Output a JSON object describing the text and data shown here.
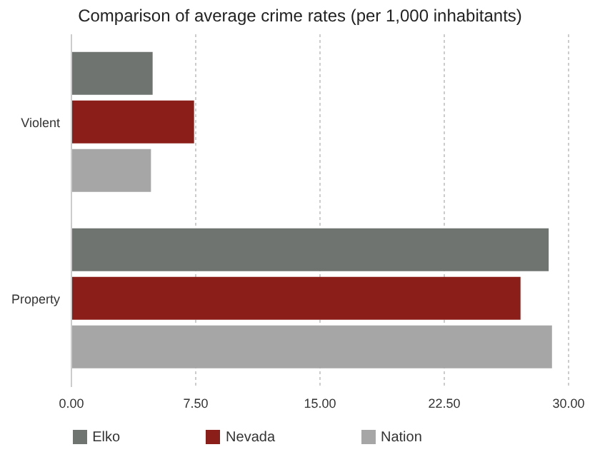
{
  "chart_data": {
    "type": "bar",
    "orientation": "horizontal",
    "title": "Comparison of average crime rates (per 1,000 inhabitants)",
    "categories": [
      "Violent",
      "Property"
    ],
    "series": [
      {
        "name": "Elko",
        "color": "#6f7471",
        "values": [
          4.9,
          28.8
        ]
      },
      {
        "name": "Nevada",
        "color": "#8b1e18",
        "values": [
          7.4,
          27.1
        ]
      },
      {
        "name": "Nation",
        "color": "#a6a6a6",
        "values": [
          4.8,
          29.0
        ]
      }
    ],
    "xlim": [
      0,
      30
    ],
    "xticks": [
      {
        "value": 0,
        "label": "0.00"
      },
      {
        "value": 7.5,
        "label": "7.50"
      },
      {
        "value": 15,
        "label": "15.00"
      },
      {
        "value": 22.5,
        "label": "22.50"
      },
      {
        "value": 30,
        "label": "30.00"
      }
    ],
    "grid": "x",
    "legend": "bottom"
  }
}
